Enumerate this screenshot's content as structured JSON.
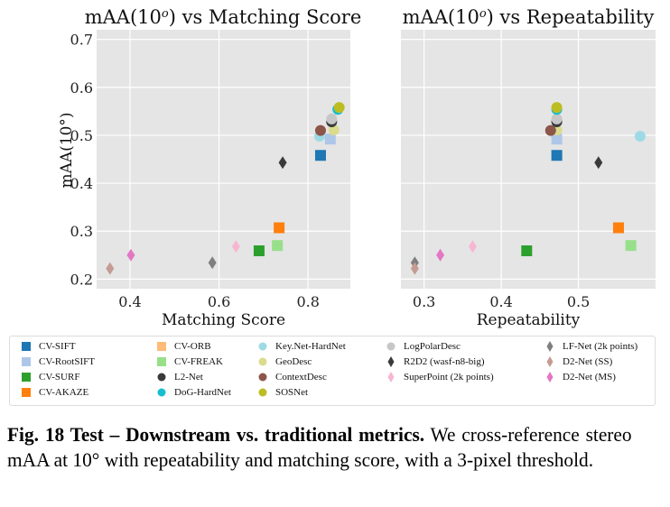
{
  "chart_data": [
    {
      "type": "scatter",
      "title": "mAA(10°) vs Matching Score",
      "title_base": "mAA(10",
      "title_sup": "o",
      "title_tail": ") vs Matching Score",
      "xlabel": "Matching Score",
      "ylabel": "mAA(10°)",
      "xlim": [
        0.325,
        0.895
      ],
      "ylim": [
        0.18,
        0.72
      ],
      "xticks": [
        0.4,
        0.6,
        0.8
      ],
      "xtick_labels": [
        "0.4",
        "0.6",
        "0.8"
      ],
      "yticks": [
        0.2,
        0.3,
        0.4,
        0.5,
        0.6,
        0.7
      ],
      "ytick_labels": [
        "0.2",
        "0.3",
        "0.4",
        "0.5",
        "0.6",
        "0.7"
      ],
      "grid": true,
      "points": [
        {
          "method": "CV-SIFT",
          "x": 0.828,
          "y": 0.458
        },
        {
          "method": "CV-RootSIFT",
          "x": 0.85,
          "y": 0.492
        },
        {
          "method": "CV-SURF",
          "x": 0.69,
          "y": 0.259
        },
        {
          "method": "CV-AKAZE",
          "x": 0.735,
          "y": 0.307
        },
        {
          "method": "CV-FREAK",
          "x": 0.731,
          "y": 0.27
        },
        {
          "method": "Key.Net-HardNet",
          "x": 0.826,
          "y": 0.498
        },
        {
          "method": "GeoDesc",
          "x": 0.858,
          "y": 0.511
        },
        {
          "method": "ContextDesc",
          "x": 0.828,
          "y": 0.51
        },
        {
          "method": "L2-Net",
          "x": 0.853,
          "y": 0.528
        },
        {
          "method": "LogPolarDesc",
          "x": 0.853,
          "y": 0.534
        },
        {
          "method": "DoG-HardNet",
          "x": 0.867,
          "y": 0.554
        },
        {
          "method": "SOSNet",
          "x": 0.87,
          "y": 0.558
        },
        {
          "method": "R2D2 (wasf-n8-big)",
          "x": 0.743,
          "y": 0.443
        },
        {
          "method": "SuperPoint (2k points)",
          "x": 0.638,
          "y": 0.268
        },
        {
          "method": "LF-Net (2k points)",
          "x": 0.585,
          "y": 0.234
        },
        {
          "method": "D2-Net (SS)",
          "x": 0.355,
          "y": 0.222
        },
        {
          "method": "D2-Net (MS)",
          "x": 0.402,
          "y": 0.25
        }
      ]
    },
    {
      "type": "scatter",
      "title": "mAA(10°) vs Repeatability",
      "title_base": "mAA(10",
      "title_sup": "o",
      "title_tail": ") vs Repeatability",
      "xlabel": "Repeatability",
      "ylabel": "",
      "xlim": [
        0.27,
        0.6
      ],
      "ylim": [
        0.18,
        0.72
      ],
      "xticks": [
        0.3,
        0.4,
        0.5
      ],
      "xtick_labels": [
        "0.3",
        "0.4",
        "0.5"
      ],
      "yticks": [
        0.2,
        0.3,
        0.4,
        0.5,
        0.6,
        0.7
      ],
      "ytick_labels": [],
      "grid": true,
      "points": [
        {
          "method": "CV-SIFT",
          "x": 0.472,
          "y": 0.458
        },
        {
          "method": "CV-RootSIFT",
          "x": 0.472,
          "y": 0.492
        },
        {
          "method": "CV-SURF",
          "x": 0.433,
          "y": 0.259
        },
        {
          "method": "CV-AKAZE",
          "x": 0.552,
          "y": 0.307
        },
        {
          "method": "CV-FREAK",
          "x": 0.568,
          "y": 0.27
        },
        {
          "method": "Key.Net-HardNet",
          "x": 0.58,
          "y": 0.498
        },
        {
          "method": "GeoDesc",
          "x": 0.472,
          "y": 0.511
        },
        {
          "method": "ContextDesc",
          "x": 0.464,
          "y": 0.51
        },
        {
          "method": "L2-Net",
          "x": 0.472,
          "y": 0.528
        },
        {
          "method": "LogPolarDesc",
          "x": 0.472,
          "y": 0.534
        },
        {
          "method": "DoG-HardNet",
          "x": 0.472,
          "y": 0.554
        },
        {
          "method": "SOSNet",
          "x": 0.472,
          "y": 0.558
        },
        {
          "method": "R2D2 (wasf-n8-big)",
          "x": 0.526,
          "y": 0.443
        },
        {
          "method": "SuperPoint (2k points)",
          "x": 0.363,
          "y": 0.268
        },
        {
          "method": "LF-Net (2k points)",
          "x": 0.288,
          "y": 0.234
        },
        {
          "method": "D2-Net (SS)",
          "x": 0.288,
          "y": 0.222
        },
        {
          "method": "D2-Net (MS)",
          "x": 0.321,
          "y": 0.25
        }
      ]
    }
  ],
  "legend": {
    "items": [
      {
        "label": "CV-SIFT",
        "marker": "square",
        "color": "#1f77b4"
      },
      {
        "label": "CV-RootSIFT",
        "marker": "square",
        "color": "#aec7e8"
      },
      {
        "label": "CV-SURF",
        "marker": "square",
        "color": "#2ca02c"
      },
      {
        "label": "CV-AKAZE",
        "marker": "square",
        "color": "#ff7f0e"
      },
      {
        "label": "CV-ORB",
        "marker": "square",
        "color": "#ffbb78"
      },
      {
        "label": "CV-FREAK",
        "marker": "square",
        "color": "#98df8a"
      },
      {
        "label": "L2-Net",
        "marker": "circle",
        "color": "#3a3a3a"
      },
      {
        "label": "DoG-HardNet",
        "marker": "circle",
        "color": "#17becf"
      },
      {
        "label": "Key.Net-HardNet",
        "marker": "circle",
        "color": "#9edae5"
      },
      {
        "label": "GeoDesc",
        "marker": "circle",
        "color": "#dbdb8d"
      },
      {
        "label": "ContextDesc",
        "marker": "circle",
        "color": "#8c564b"
      },
      {
        "label": "SOSNet",
        "marker": "circle",
        "color": "#bcbd22"
      },
      {
        "label": "LogPolarDesc",
        "marker": "circle",
        "color": "#c7c7c7"
      },
      {
        "label": "R2D2 (wasf-n8-big)",
        "marker": "diamond",
        "color": "#3a3a3a"
      },
      {
        "label": "SuperPoint (2k points)",
        "marker": "diamond",
        "color": "#f7b6d2"
      },
      {
        "label": "LF-Net (2k points)",
        "marker": "diamond",
        "color": "#7f7f7f"
      },
      {
        "label": "D2-Net (SS)",
        "marker": "diamond",
        "color": "#c49c94"
      },
      {
        "label": "D2-Net (MS)",
        "marker": "diamond",
        "color": "#e377c2"
      }
    ]
  },
  "caption": {
    "bold": "Fig. 18 Test – Downstream vs. traditional metrics.",
    "text": " We cross-reference stereo mAA at 10° with repeatability and matching score, with a 3-pixel threshold."
  },
  "colors": {
    "plot_background": "#e5e5e5",
    "grid": "#ffffff"
  }
}
